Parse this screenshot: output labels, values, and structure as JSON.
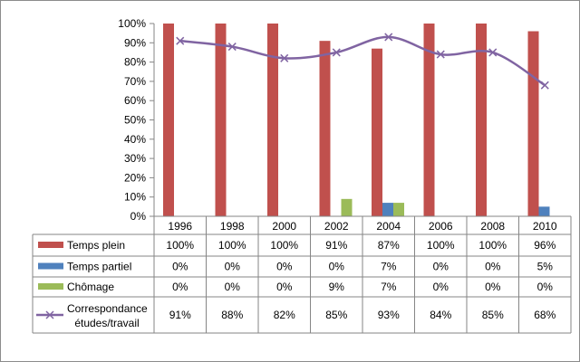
{
  "chart_data": {
    "type": "bar",
    "categories": [
      "1996",
      "1998",
      "2000",
      "2002",
      "2004",
      "2006",
      "2008",
      "2010"
    ],
    "ylim": [
      0,
      100
    ],
    "ytick_labels": [
      "0%",
      "10%",
      "20%",
      "30%",
      "40%",
      "50%",
      "60%",
      "70%",
      "80%",
      "90%",
      "100%"
    ],
    "grid": false,
    "legend_position": "table-left",
    "series": [
      {
        "name": "Temps plein",
        "kind": "bar",
        "color": "#c0504d",
        "values": [
          100,
          100,
          100,
          91,
          87,
          100,
          100,
          96
        ],
        "labels": [
          "100%",
          "100%",
          "100%",
          "91%",
          "87%",
          "100%",
          "100%",
          "96%"
        ]
      },
      {
        "name": "Temps partiel",
        "kind": "bar",
        "color": "#4f81bd",
        "values": [
          0,
          0,
          0,
          0,
          7,
          0,
          0,
          5
        ],
        "labels": [
          "0%",
          "0%",
          "0%",
          "0%",
          "7%",
          "0%",
          "0%",
          "5%"
        ]
      },
      {
        "name": "Chômage",
        "kind": "bar",
        "color": "#9bbb59",
        "values": [
          0,
          0,
          0,
          9,
          7,
          0,
          0,
          0
        ],
        "labels": [
          "0%",
          "0%",
          "0%",
          "9%",
          "7%",
          "0%",
          "0%",
          "0%"
        ]
      },
      {
        "name": "Correspondance",
        "name_line2": "études/travail",
        "kind": "line",
        "color": "#8064a2",
        "values": [
          91,
          88,
          82,
          85,
          93,
          84,
          85,
          68
        ],
        "labels": [
          "91%",
          "88%",
          "82%",
          "85%",
          "93%",
          "84%",
          "85%",
          "68%"
        ]
      }
    ]
  }
}
